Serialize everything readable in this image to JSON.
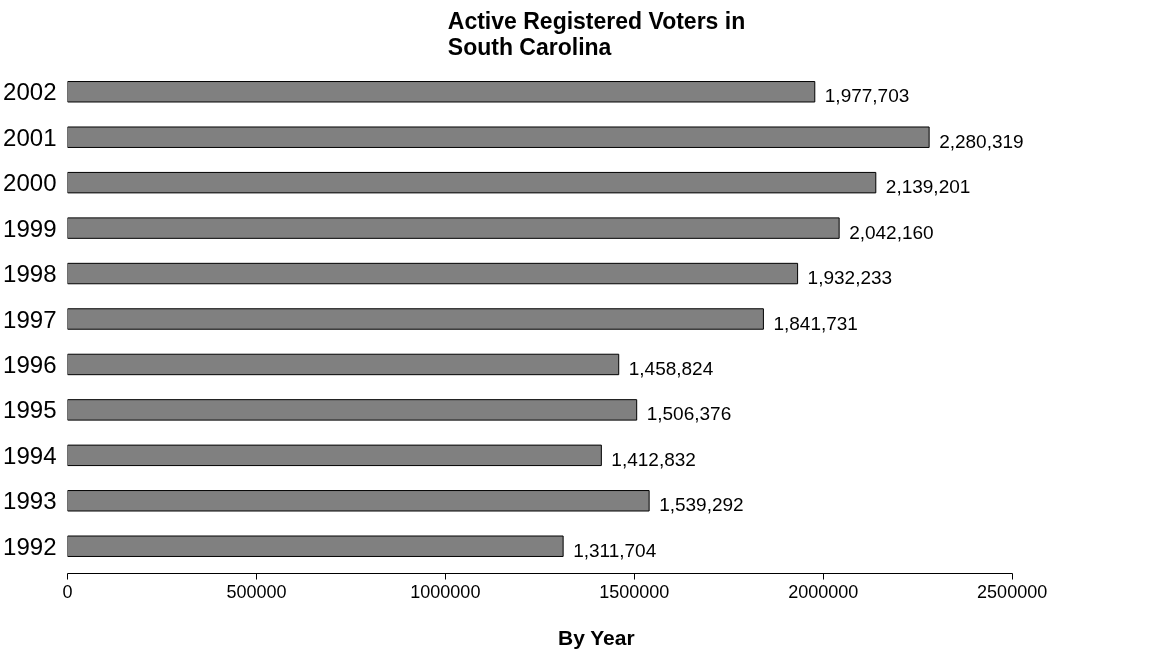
{
  "chart_data": {
    "type": "bar",
    "orientation": "horizontal",
    "title": "Active Registered Voters in\nSouth Carolina",
    "xlabel": "By Year",
    "categories": [
      "2002",
      "2001",
      "2000",
      "1999",
      "1998",
      "1997",
      "1996",
      "1995",
      "1994",
      "1993",
      "1992"
    ],
    "values": [
      1977703,
      2280319,
      2139201,
      2042160,
      1932233,
      1841731,
      1458824,
      1506376,
      1412832,
      1539292,
      1311704
    ],
    "value_labels": [
      "1,977,703",
      "2,280,319",
      "2,139,201",
      "2,042,160",
      "1,932,233",
      "1,841,731",
      "1,458,824",
      "1,506,376",
      "1,412,832",
      "1,539,292",
      "1,311,704"
    ],
    "color": "#808080",
    "xlim": [
      0,
      2500000
    ],
    "xticks": [
      0,
      500000,
      1000000,
      1500000,
      2000000,
      2500000
    ],
    "grid": false
  }
}
